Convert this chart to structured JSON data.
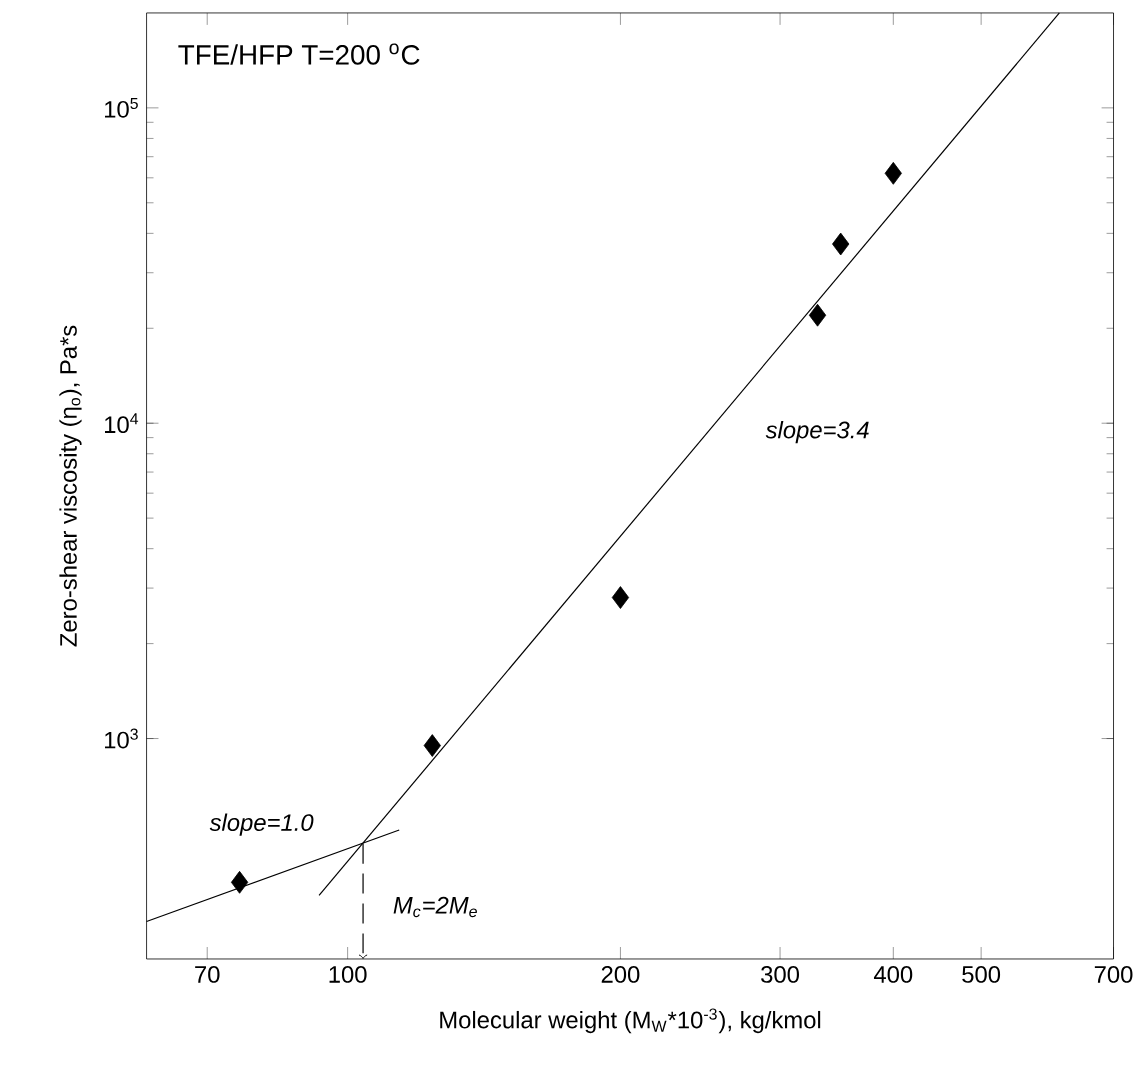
{
  "chart_data": {
    "type": "scatter",
    "title": "TFE/HFP     T=200 $^{o}$C",
    "xlabel": "Molecular weight (M$_{W}$*10$^{-3}$), kg/kmol",
    "ylabel": "Zero-shear viscosity (η$_{o}$), Pa*s",
    "log": "xy",
    "xlim": [
      60,
      700
    ],
    "ylim": [
      200,
      200000
    ],
    "xticks": [
      70,
      100,
      200,
      300,
      400,
      500,
      700
    ],
    "yticks": [
      {
        "value": 1000,
        "label": "10$^{3}$"
      },
      {
        "value": 10000,
        "label": "10$^{4}$"
      },
      {
        "value": 100000,
        "label": "10$^{5}$"
      }
    ],
    "series": [
      {
        "color": "#000000",
        "marker": "diamond",
        "x": [
          76,
          124,
          200,
          330,
          350,
          400
        ],
        "values": [
          350,
          950,
          2800,
          22000,
          37000,
          62000
        ]
      },
      {
        "type": "line",
        "color": "#000000",
        "marker": "none",
        "line_style": "solid",
        "x": [
          60,
          114
        ],
        "values": [
          263,
          513
        ]
      },
      {
        "type": "line",
        "color": "#000000",
        "marker": "none",
        "line_style": "solid",
        "x": [
          93,
          610
        ],
        "values": [
          318,
          200000
        ]
      },
      {
        "type": "line",
        "color": "#000000",
        "line_style": "dashed",
        "x": [
          104,
          104
        ],
        "values": [
          464,
          200
        ]
      }
    ],
    "annotations": [
      "slope=1.0",
      "slope=3.4",
      "M$_{c}$=2M$_{e}$"
    ]
  }
}
